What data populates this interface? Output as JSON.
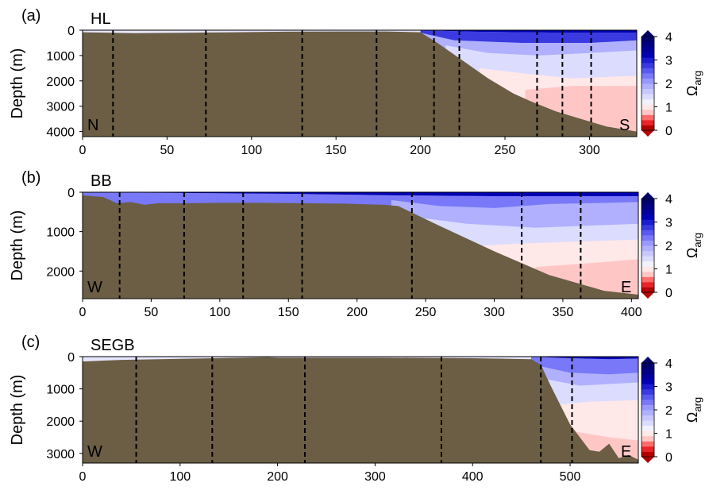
{
  "colors": {
    "bathymetry": "#6b5e45",
    "station_line": "#000000",
    "omega_scale": [
      "#b30000",
      "#e8232a",
      "#ff6b6b",
      "#ffc6c6",
      "#ffe8e8",
      "#f2f2ff",
      "#dcdcff",
      "#c8c8ff",
      "#b0b0ff",
      "#9898ff",
      "#7878f8",
      "#5a5af0",
      "#3a3ae0",
      "#1c1cd0",
      "#0000b4",
      "#000099",
      "#000080",
      "#00006b"
    ]
  },
  "chart_data": [
    {
      "type": "heatmap",
      "panel_label": "(a)",
      "title": "HL",
      "ylabel": "Depth (m)",
      "xlim": [
        0,
        328
      ],
      "ylim": [
        4200,
        0
      ],
      "xticks": [
        0,
        50,
        100,
        150,
        200,
        250,
        300
      ],
      "yticks": [
        0,
        1000,
        2000,
        3000,
        4000
      ],
      "left_end_label": "N",
      "right_end_label": "S",
      "stations_x": [
        18,
        73,
        130,
        174,
        208,
        223,
        269,
        284,
        301
      ],
      "bathymetry": {
        "x": [
          0,
          30,
          60,
          90,
          120,
          150,
          180,
          200,
          210,
          225,
          240,
          255,
          265,
          280,
          295,
          310,
          328
        ],
        "y": [
          80,
          120,
          100,
          80,
          60,
          50,
          50,
          80,
          500,
          1200,
          1900,
          2500,
          2800,
          3200,
          3500,
          3800,
          4000
        ]
      },
      "contours": [
        {
          "level": "3.0",
          "x": [
            200,
            230,
            260,
            290,
            328
          ],
          "y": [
            0,
            60,
            80,
            100,
            100
          ]
        },
        {
          "level": "2.0",
          "x": [
            200,
            220,
            260,
            300,
            328
          ],
          "y": [
            100,
            400,
            500,
            500,
            400
          ]
        },
        {
          "level": "1.5",
          "x": [
            215,
            240,
            270,
            300,
            328
          ],
          "y": [
            600,
            900,
            1000,
            900,
            800
          ]
        },
        {
          "level": "1.2",
          "x": [
            235,
            260,
            290,
            328
          ],
          "y": [
            1500,
            1700,
            1900,
            1800
          ]
        },
        {
          "level": "1.0",
          "x": [
            262,
            290,
            328
          ],
          "y": [
            2350,
            2200,
            2200
          ]
        },
        {
          "level": "0.8",
          "x": [
            290,
            310,
            328
          ],
          "y": [
            3200,
            3300,
            3200
          ]
        }
      ],
      "colorbar": {
        "label": "Ωarg",
        "ticks": [
          0,
          1,
          2,
          3,
          4
        ]
      }
    },
    {
      "type": "heatmap",
      "panel_label": "(b)",
      "title": "BB",
      "ylabel": "Depth (m)",
      "xlim": [
        0,
        405
      ],
      "ylim": [
        2700,
        0
      ],
      "xticks": [
        0,
        50,
        100,
        150,
        200,
        250,
        300,
        350,
        400
      ],
      "yticks": [
        0,
        1000,
        2000
      ],
      "left_end_label": "W",
      "right_end_label": "E",
      "stations_x": [
        27,
        74,
        117,
        160,
        240,
        320,
        363
      ],
      "bathymetry": {
        "x": [
          0,
          15,
          25,
          35,
          45,
          55,
          75,
          100,
          130,
          160,
          190,
          220,
          230,
          260,
          300,
          340,
          380,
          405
        ],
        "y": [
          80,
          120,
          280,
          250,
          320,
          280,
          280,
          270,
          270,
          280,
          290,
          320,
          350,
          850,
          1500,
          2100,
          2500,
          2600
        ]
      },
      "contours": [
        {
          "level": "2.5",
          "x": [
            0,
            150,
            230,
            300,
            405
          ],
          "y": [
            0,
            40,
            80,
            100,
            100
          ]
        },
        {
          "level": "2.0",
          "x": [
            225,
            260,
            300,
            340,
            405
          ],
          "y": [
            200,
            350,
            400,
            300,
            250
          ]
        },
        {
          "level": "1.5",
          "x": [
            235,
            280,
            330,
            405
          ],
          "y": [
            600,
            800,
            900,
            800
          ]
        },
        {
          "level": "1.2",
          "x": [
            270,
            320,
            405
          ],
          "y": [
            1400,
            1300,
            1200
          ]
        },
        {
          "level": "1.0",
          "x": [
            330,
            370,
            405
          ],
          "y": [
            1900,
            1800,
            1700
          ]
        },
        {
          "level": "0.8",
          "x": [
            350,
            380,
            405
          ],
          "y": [
            2300,
            2350,
            2400
          ]
        }
      ],
      "colorbar": {
        "label": "Ωarg",
        "ticks": [
          0,
          1,
          2,
          3,
          4
        ]
      }
    },
    {
      "type": "heatmap",
      "panel_label": "(c)",
      "title": "SEGB",
      "ylabel": "Depth (m)",
      "xlim": [
        0,
        570
      ],
      "ylim": [
        3300,
        0
      ],
      "xticks": [
        0,
        100,
        200,
        300,
        400,
        500
      ],
      "yticks": [
        0,
        1000,
        2000,
        3000
      ],
      "left_end_label": "W",
      "right_end_label": "E",
      "stations_x": [
        55,
        133,
        228,
        368,
        470,
        502
      ],
      "bathymetry": {
        "x": [
          0,
          40,
          100,
          190,
          200,
          300,
          400,
          460,
          470,
          480,
          500,
          510,
          520,
          530,
          540,
          550,
          560,
          570
        ],
        "y": [
          150,
          100,
          70,
          20,
          30,
          30,
          50,
          80,
          250,
          900,
          2100,
          2500,
          2900,
          2950,
          2700,
          3150,
          3050,
          3200
        ]
      },
      "contours": [
        {
          "level": "2.5",
          "x": [
            460,
            500,
            540,
            570
          ],
          "y": [
            0,
            50,
            80,
            60
          ]
        },
        {
          "level": "2.0",
          "x": [
            470,
            500,
            540,
            570
          ],
          "y": [
            300,
            500,
            550,
            500
          ]
        },
        {
          "level": "1.5",
          "x": [
            475,
            510,
            570
          ],
          "y": [
            700,
            900,
            800
          ]
        },
        {
          "level": "1.2",
          "x": [
            485,
            520,
            570
          ],
          "y": [
            1500,
            1400,
            1350
          ]
        },
        {
          "level": "1.0",
          "x": [
            500,
            540,
            570
          ],
          "y": [
            2300,
            2500,
            2600
          ]
        },
        {
          "level": "0.8",
          "x": [
            530,
            570
          ],
          "y": [
            2800,
            2900
          ]
        }
      ],
      "colorbar": {
        "label": "Ωarg",
        "ticks": [
          0,
          1,
          2,
          3,
          4
        ]
      }
    }
  ]
}
